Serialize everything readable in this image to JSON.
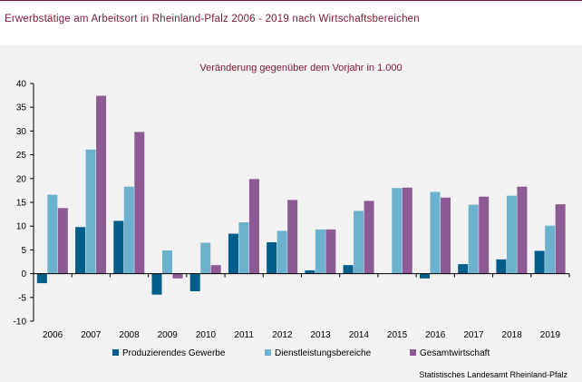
{
  "header": {
    "title": "Erwerbstätige  am  Arbeitsort  in Rheinland-Pfalz  2006  - 2019  nach  Wirtschaftsbereichen"
  },
  "chart_data": {
    "type": "bar",
    "title": "",
    "subtitle": "Veränderung  gegenüber  dem  Vorjahr in 1.000",
    "xlabel": "",
    "ylabel": "",
    "ylim": [
      -10,
      40
    ],
    "yticks": [
      -10,
      -5,
      0,
      5,
      10,
      15,
      20,
      25,
      30,
      35,
      40
    ],
    "grid": false,
    "legend_position": "bottom",
    "categories": [
      "2006",
      "2007",
      "2008",
      "2009",
      "2010",
      "2011",
      "2012",
      "2013",
      "2014",
      "2015",
      "2016",
      "2017",
      "2018",
      "2019"
    ],
    "series": [
      {
        "name": "Produzierendes Gewerbe",
        "color": "#005e8a",
        "values": [
          -2.0,
          9.8,
          11.1,
          -4.4,
          -3.7,
          8.4,
          6.6,
          0.7,
          1.8,
          0.0,
          -1.0,
          2.0,
          3.0,
          4.8
        ]
      },
      {
        "name": "Dienstleistungsbereiche",
        "color": "#6cb2cf",
        "values": [
          16.6,
          26.1,
          18.3,
          4.9,
          6.5,
          10.8,
          9.0,
          9.3,
          13.2,
          18.0,
          17.2,
          14.5,
          16.4,
          10.1
        ]
      },
      {
        "name": "Gesamtwirtschaft",
        "color": "#8e5a95",
        "values": [
          13.8,
          37.4,
          29.8,
          -1.0,
          1.8,
          19.9,
          15.5,
          9.3,
          15.3,
          18.1,
          16.0,
          16.2,
          18.3,
          14.6
        ]
      }
    ]
  },
  "footer": {
    "source": "Statistisches Landesamt Rheinland-Pfalz"
  }
}
